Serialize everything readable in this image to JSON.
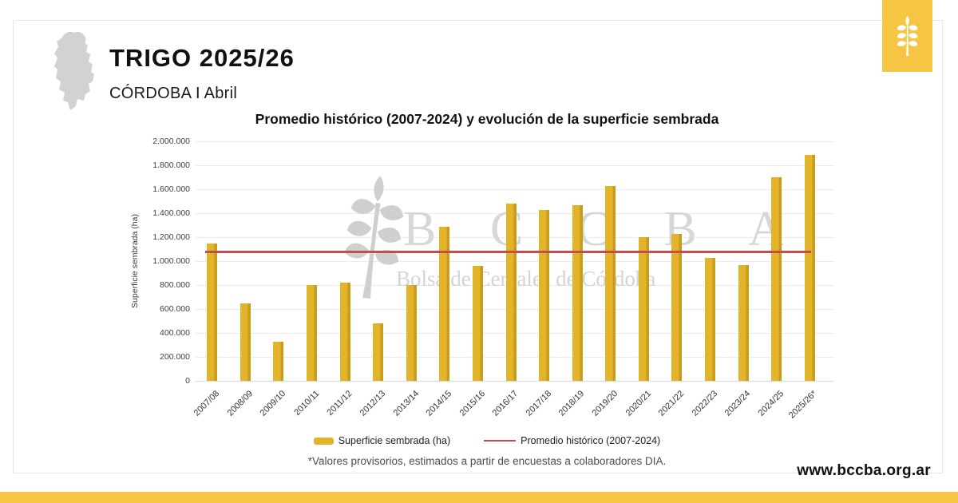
{
  "header": {
    "title": "TRIGO 2025/26",
    "subtitle": "CÓRDOBA I Abril"
  },
  "branding": {
    "url": "www.bccba.org.ar",
    "watermark_acronym": "B C C B A",
    "watermark_name": "Bolsa de Cereales de Córdoba",
    "accent_yellow": "#F6C544",
    "bar_yellow": "#E2B42A",
    "bar_yellow_dark": "#C89A1F",
    "line_red": "#C0504D",
    "map_gray": "#d2d2d2",
    "watermark_gray": "#d0d0d0"
  },
  "footnote": "*Valores provisorios, estimados a partir de encuestas a colaboradores DIA.",
  "chart_data": {
    "type": "bar",
    "title": "Promedio histórico (2007-2024) y evolución de la superficie sembrada",
    "xlabel": "",
    "ylabel": "Superficie sembrada (ha)",
    "ylim": [
      0,
      2000000
    ],
    "ytick_step": 200000,
    "ytick_labels": [
      "0",
      "200.000",
      "400.000",
      "600.000",
      "800.000",
      "1.000.000",
      "1.200.000",
      "1.400.000",
      "1.600.000",
      "1.800.000",
      "2.000.000"
    ],
    "grid": true,
    "legend_position": "bottom",
    "categories": [
      "2007/08",
      "2008/09",
      "2009/10",
      "2010/11",
      "2011/12",
      "2012/13",
      "2013/14",
      "2014/15",
      "2015/16",
      "2016/17",
      "2017/18",
      "2018/19",
      "2019/20",
      "2020/21",
      "2021/22",
      "2022/23",
      "2023/24",
      "2024/25",
      "2025/26*"
    ],
    "series": [
      {
        "name": "Superficie sembrada (ha)",
        "type": "bar",
        "color": "#E2B42A",
        "values": [
          1150000,
          650000,
          330000,
          800000,
          820000,
          480000,
          800000,
          1290000,
          960000,
          1480000,
          1425000,
          1470000,
          1630000,
          1200000,
          1230000,
          1030000,
          970000,
          1700000,
          1885000
        ]
      },
      {
        "name": "Promedio histórico (2007-2024)",
        "type": "line",
        "color": "#C0504D",
        "value": 1080000
      }
    ]
  }
}
